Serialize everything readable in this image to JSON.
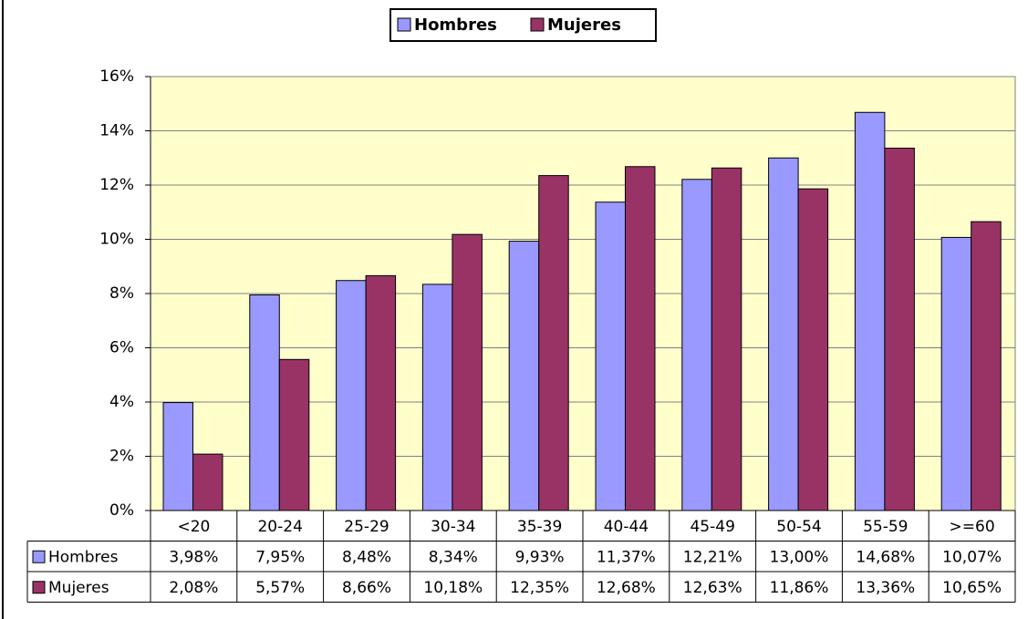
{
  "chart_data": {
    "type": "bar",
    "categories": [
      "<20",
      "20-24",
      "25-29",
      "30-34",
      "35-39",
      "40-44",
      "45-49",
      "50-54",
      "55-59",
      ">=60"
    ],
    "series": [
      {
        "name": "Hombres",
        "color": "#9999ff",
        "values": [
          3.98,
          7.95,
          8.48,
          8.34,
          9.93,
          11.37,
          12.21,
          13.0,
          14.68,
          10.07
        ],
        "value_labels": [
          "3,98%",
          "7,95%",
          "8,48%",
          "8,34%",
          "9,93%",
          "11,37%",
          "12,21%",
          "13,00%",
          "14,68%",
          "10,07%"
        ]
      },
      {
        "name": "Mujeres",
        "color": "#993366",
        "values": [
          2.08,
          5.57,
          8.66,
          10.18,
          12.35,
          12.68,
          12.63,
          11.86,
          13.36,
          10.65
        ],
        "value_labels": [
          "2,08%",
          "5,57%",
          "8,66%",
          "10,18%",
          "12,35%",
          "12,68%",
          "12,63%",
          "11,86%",
          "13,36%",
          "10,65%"
        ]
      }
    ],
    "ylim": [
      0,
      16
    ],
    "yticks": [
      {
        "value": 0,
        "label": "0%"
      },
      {
        "value": 2,
        "label": "2%"
      },
      {
        "value": 4,
        "label": "4%"
      },
      {
        "value": 6,
        "label": "6%"
      },
      {
        "value": 8,
        "label": "8%"
      },
      {
        "value": 10,
        "label": "10%"
      },
      {
        "value": 12,
        "label": "12%"
      },
      {
        "value": 14,
        "label": "14%"
      },
      {
        "value": 16,
        "label": "16%"
      }
    ],
    "grid": true,
    "legend": "top"
  }
}
